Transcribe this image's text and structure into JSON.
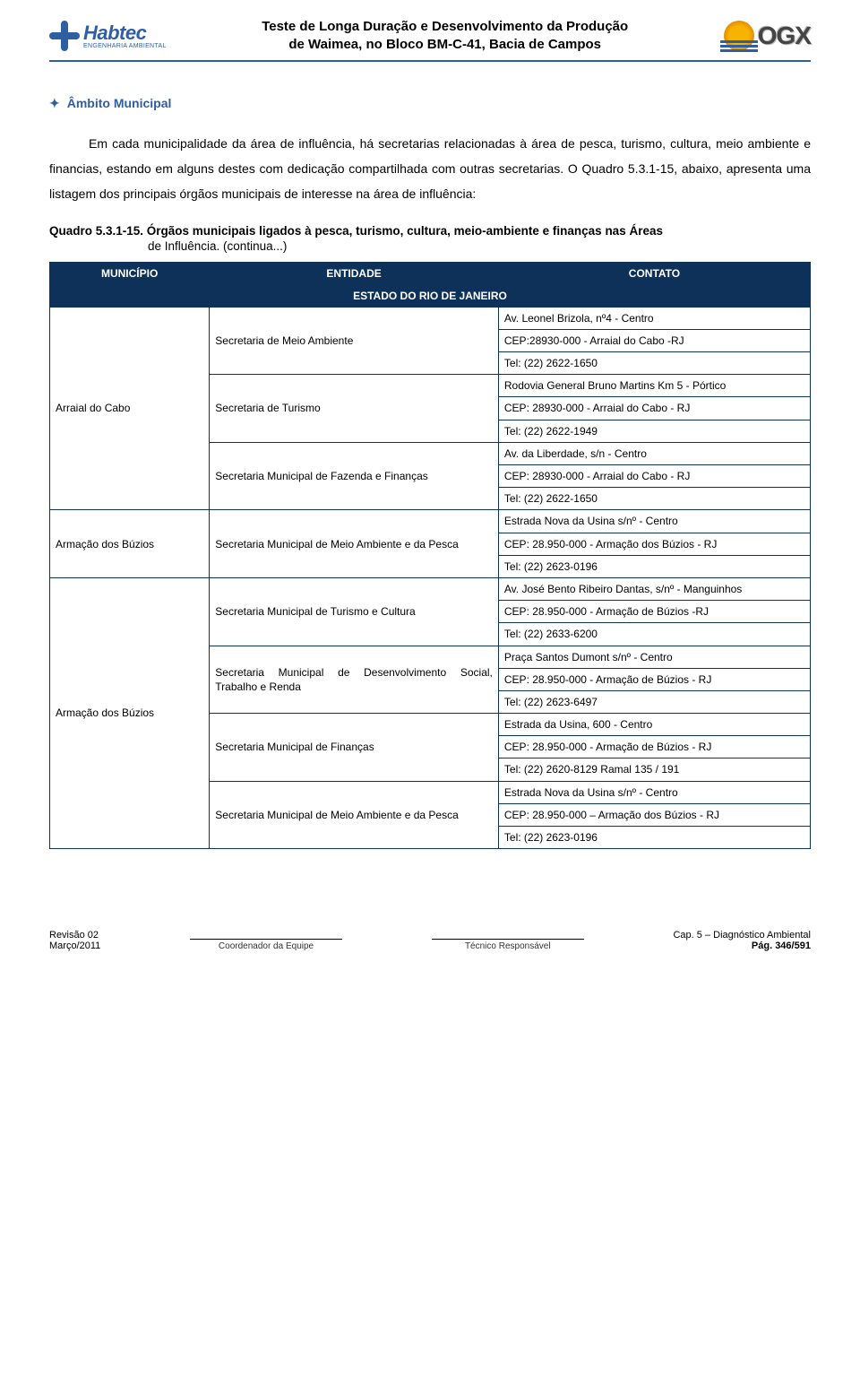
{
  "header": {
    "company_name": "Habtec",
    "company_sub": "ENGENHARIA AMBIENTAL",
    "title_line1": "Teste de Longa Duração e Desenvolvimento da Produção",
    "title_line2": "de Waimea, no Bloco BM-C-41, Bacia de Campos",
    "ogx": "OGX"
  },
  "section_title": "Âmbito Municipal",
  "paragraph1": "Em cada municipalidade da área de influência, há secretarias relacionadas à área de pesca, turismo, cultura, meio ambiente e financias, estando em alguns destes com dedicação compartilhada com outras secretarias. O Quadro 5.3.1-15, abaixo, apresenta uma listagem dos principais órgãos municipais de interesse na área de influência:",
  "quadro_title": "Quadro 5.3.1-15. Órgãos municipais ligados à pesca, turismo, cultura, meio-ambiente e finanças nas Áreas",
  "quadro_sub": "de Influência. (continua...)",
  "table": {
    "columns": [
      "MUNICÍPIO",
      "ENTIDADE",
      "CONTATO"
    ],
    "estado_label": "ESTADO DO RIO DE JANEIRO",
    "colors": {
      "header_bg": "#0e3159",
      "header_fg": "#ffffff",
      "border": "#0e3159"
    },
    "municipios": [
      {
        "nome": "Arraial do Cabo",
        "entidades": [
          {
            "nome": "Secretaria de Meio Ambiente",
            "contatos": [
              "Av. Leonel Brizola, nº4 - Centro",
              "CEP:28930-000 - Arraial do Cabo -RJ",
              "Tel: (22) 2622-1650"
            ]
          },
          {
            "nome": "Secretaria de Turismo",
            "contatos": [
              "Rodovia General Bruno Martins Km 5 - Pórtico",
              "CEP: 28930-000 - Arraial do Cabo - RJ",
              "Tel: (22) 2622-1949"
            ]
          },
          {
            "nome": "Secretaria Municipal de Fazenda e Finanças",
            "justify": true,
            "contatos": [
              "Av. da Liberdade, s/n - Centro",
              "CEP: 28930-000 - Arraial do Cabo - RJ",
              "Tel: (22) 2622-1650"
            ]
          }
        ]
      },
      {
        "nome": "Armação dos Búzios",
        "entidades": [
          {
            "nome": "Secretaria Municipal de Meio Ambiente e da Pesca",
            "contatos": [
              "Estrada Nova da Usina s/nº - Centro",
              "CEP: 28.950-000 - Armação dos Búzios - RJ",
              "Tel: (22) 2623-0196"
            ]
          }
        ]
      },
      {
        "nome": "Armação dos Búzios",
        "entidades": [
          {
            "nome": "Secretaria Municipal de Turismo e Cultura",
            "contatos": [
              {
                "text": "Av. José Bento Ribeiro Dantas, s/nº - Manguinhos",
                "justify": true
              },
              "CEP: 28.950-000 - Armação de Búzios -RJ",
              "Tel: (22) 2633-6200"
            ]
          },
          {
            "nome": "Secretaria Municipal de Desenvolvimento Social, Trabalho e Renda",
            "justify": true,
            "contatos": [
              "Praça Santos Dumont s/nº - Centro",
              "CEP: 28.950-000 - Armação de Búzios - RJ",
              "Tel: (22) 2623-6497"
            ]
          },
          {
            "nome": "Secretaria Municipal de Finanças",
            "contatos": [
              "Estrada da Usina, 600 - Centro",
              "CEP: 28.950-000  - Armação de Búzios - RJ",
              "Tel: (22) 2620-8129 Ramal 135 / 191"
            ]
          },
          {
            "nome": "Secretaria Municipal de Meio Ambiente e da Pesca",
            "contatos": [
              "Estrada Nova da Usina s/nº - Centro",
              "CEP: 28.950-000 – Armação dos Búzios - RJ",
              "Tel:  (22) 2623-0196"
            ]
          }
        ]
      }
    ]
  },
  "footer": {
    "rev": "Revisão 02",
    "date": "Março/2011",
    "sig1": "Coordenador da Equipe",
    "sig2": "Técnico Responsável",
    "cap": "Cap. 5 – Diagnóstico Ambiental",
    "page": "Pág. 346/591"
  }
}
